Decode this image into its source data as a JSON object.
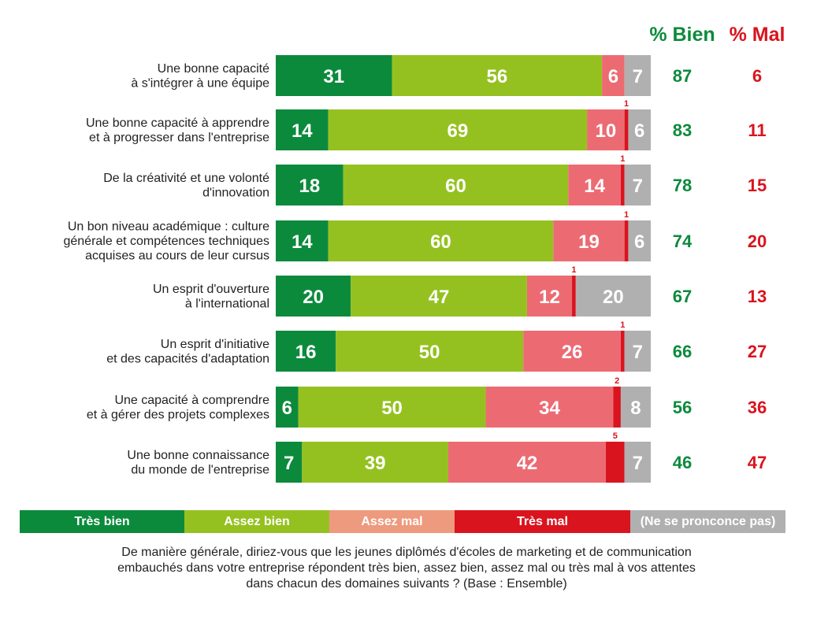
{
  "chart_data": {
    "type": "bar",
    "orientation": "horizontal",
    "stacked": true,
    "xlim": [
      0,
      100
    ],
    "categories": [
      [
        "Une bonne capacité",
        "à s'intégrer à une équipe"
      ],
      [
        "Une bonne capacité à apprendre",
        "et à progresser dans l'entreprise"
      ],
      [
        "De la créativité et une volonté",
        "d'innovation"
      ],
      [
        "Un bon niveau académique : culture",
        "générale et compétences techniques",
        "acquises au cours de leur cursus"
      ],
      [
        "Un esprit d'ouverture",
        "à l'international"
      ],
      [
        "Un esprit d'initiative",
        "et des capacités d'adaptation"
      ],
      [
        "Une capacité à comprendre",
        "et à gérer des projets complexes"
      ],
      [
        "Une bonne connaissance",
        "du monde de l'entreprise"
      ]
    ],
    "series": [
      {
        "name": "Très bien",
        "color": "#0c8a3c",
        "values": [
          31,
          14,
          18,
          14,
          20,
          16,
          6,
          7
        ]
      },
      {
        "name": "Assez bien",
        "color": "#95c120",
        "values": [
          56,
          69,
          60,
          60,
          47,
          50,
          50,
          39
        ]
      },
      {
        "name": "Assez mal",
        "color": "#ec6b73",
        "values": [
          6,
          10,
          14,
          19,
          12,
          26,
          34,
          42
        ]
      },
      {
        "name": "Très mal",
        "color": "#d9141e",
        "values": [
          0,
          1,
          1,
          1,
          1,
          1,
          2,
          5
        ]
      },
      {
        "name": "(Ne se pronconce pas)",
        "color": "#b1b0b0",
        "values": [
          7,
          6,
          7,
          6,
          20,
          7,
          8,
          7
        ]
      }
    ],
    "pct_bien": [
      87,
      83,
      78,
      74,
      67,
      66,
      56,
      46
    ],
    "pct_mal": [
      6,
      11,
      15,
      20,
      13,
      27,
      36,
      47
    ],
    "header_bien": "% Bien",
    "header_mal": "% Mal",
    "color_bien": "#0c8a3c",
    "color_mal": "#d9141e"
  },
  "legend": [
    {
      "label": "Très bien",
      "color": "#0c8a3c"
    },
    {
      "label": "Assez bien",
      "color": "#95c120"
    },
    {
      "label": "Assez mal",
      "color": "#ee9a7e"
    },
    {
      "label": "Très mal",
      "color": "#d9141e"
    },
    {
      "label": "(Ne se pronconce pas)",
      "color": "#b1b0b0"
    }
  ],
  "question": [
    "De manière générale, diriez-vous que les jeunes diplômés d'écoles de marketing et de communication",
    "embauchés dans votre entreprise répondent très bien, assez bien, assez mal ou très mal à vos attentes",
    "dans chacun des domaines suivants ? (Base : Ensemble)"
  ]
}
